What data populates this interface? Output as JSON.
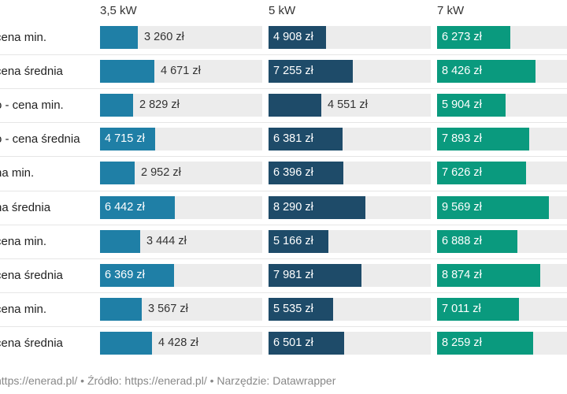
{
  "chart_data": {
    "type": "bar",
    "series": [
      {
        "name": "3,5 kW",
        "color": "#1f7fa6",
        "values": [
          3260,
          4671,
          2829,
          4715,
          2952,
          6442,
          3444,
          6369,
          3567,
          4428
        ]
      },
      {
        "name": "5 kW",
        "color": "#1e4b69",
        "values": [
          4908,
          7255,
          4551,
          6381,
          6396,
          8290,
          5166,
          7981,
          5535,
          6501
        ]
      },
      {
        "name": "7 kW",
        "color": "#0a9a7e",
        "values": [
          6273,
          8426,
          5904,
          7893,
          7626,
          9569,
          6888,
          8874,
          7011,
          8259
        ]
      }
    ],
    "categories": [
      "cena min.",
      "cena średnia",
      "o - cena min.",
      "o - cena średnia",
      "na min.",
      "na średnia",
      "cena min.",
      "cena średnia",
      "cena min.",
      "cena średnia"
    ],
    "value_labels": [
      [
        "3 260 zł",
        "4 671 zł",
        "2 829 zł",
        "4 715 zł",
        "2 952 zł",
        "6 442 zł",
        "3 444 zł",
        "6 369 zł",
        "3 567 zł",
        "4 428 zł"
      ],
      [
        "4 908 zł",
        "7 255 zł",
        "4 551 zł",
        "6 381 zł",
        "6 396 zł",
        "8 290 zł",
        "5 166 zł",
        "7 981 zł",
        "5 535 zł",
        "6 501 zł"
      ],
      [
        "6 273 zł",
        "8 426 zł",
        "5 904 zł",
        "7 893 zł",
        "7 626 zł",
        "9 569 zł",
        "6 888 zł",
        "8 874 zł",
        "7 011 zł",
        "8 259 zł"
      ]
    ],
    "xlim": [
      0,
      10000
    ]
  },
  "footer": "https://enerad.pl/ • Źródło: https://enerad.pl/ • Narzędzie: Datawrapper"
}
